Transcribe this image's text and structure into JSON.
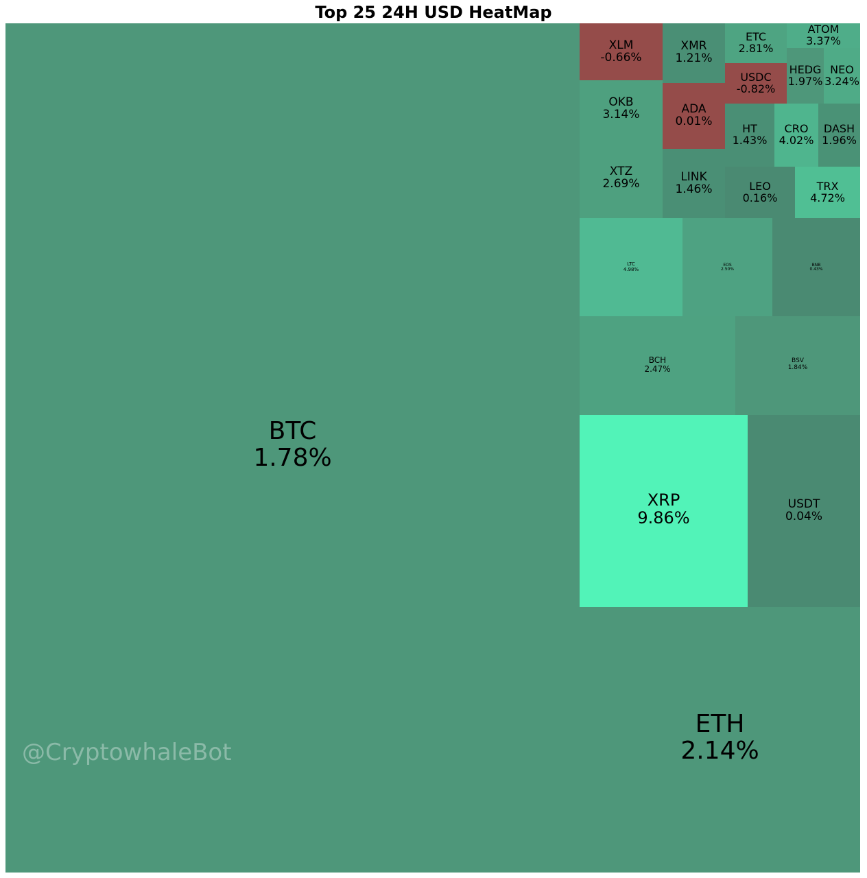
{
  "chart_data": {
    "type": "heatmap",
    "title": "Top 25 24H USD HeatMap",
    "watermark": "@CryptowhaleBot",
    "cells": [
      {
        "symbol": "BTC",
        "change": "1.78%",
        "value": 1.78,
        "color": "#4e977a"
      },
      {
        "symbol": "ETH",
        "change": "2.14%",
        "value": 2.14,
        "color": "#4e977a"
      },
      {
        "symbol": "XRP",
        "change": "9.86%",
        "value": 9.86,
        "color": "#52f3b8"
      },
      {
        "symbol": "USDT",
        "change": "0.04%",
        "value": 0.04,
        "color": "#4a8a72"
      },
      {
        "symbol": "BCH",
        "change": "2.47%",
        "value": 2.47,
        "color": "#4ea281"
      },
      {
        "symbol": "BSV",
        "change": "1.84%",
        "value": 1.84,
        "color": "#4e977a"
      },
      {
        "symbol": "LTC",
        "change": "4.98%",
        "value": 4.98,
        "color": "#50ba93"
      },
      {
        "symbol": "EOS",
        "change": "2.50%",
        "value": 2.5,
        "color": "#4ea282"
      },
      {
        "symbol": "BNB",
        "change": "0.43%",
        "value": 0.43,
        "color": "#4a8a72"
      },
      {
        "symbol": "XLM",
        "change": "-0.66%",
        "value": -0.66,
        "color": "#954c4a"
      },
      {
        "symbol": "XMR",
        "change": "1.21%",
        "value": 1.21,
        "color": "#4a8f75"
      },
      {
        "symbol": "ETC",
        "change": "2.81%",
        "value": 2.81,
        "color": "#4ea482"
      },
      {
        "symbol": "ATOM",
        "change": "3.37%",
        "value": 3.37,
        "color": "#4fad89"
      },
      {
        "symbol": "USDC",
        "change": "-0.82%",
        "value": -0.82,
        "color": "#954c4a"
      },
      {
        "symbol": "HEDG",
        "change": "1.97%",
        "value": 1.97,
        "color": "#4e977a"
      },
      {
        "symbol": "NEO",
        "change": "3.24%",
        "value": 3.24,
        "color": "#4fab87"
      },
      {
        "symbol": "OKB",
        "change": "3.14%",
        "value": 3.14,
        "color": "#4ea07f"
      },
      {
        "symbol": "XTZ",
        "change": "2.69%",
        "value": 2.69,
        "color": "#4ea07f"
      },
      {
        "symbol": "ADA",
        "change": "0.01%",
        "value": 0.01,
        "color": "#954c4a"
      },
      {
        "symbol": "LINK",
        "change": "1.46%",
        "value": 1.46,
        "color": "#4a8f75"
      },
      {
        "symbol": "HT",
        "change": "1.43%",
        "value": 1.43,
        "color": "#4a8f75"
      },
      {
        "symbol": "CRO",
        "change": "4.02%",
        "value": 4.02,
        "color": "#4fb58e"
      },
      {
        "symbol": "DASH",
        "change": "1.96%",
        "value": 1.96,
        "color": "#4a9276"
      },
      {
        "symbol": "LEO",
        "change": "0.16%",
        "value": 0.16,
        "color": "#4a8a72"
      },
      {
        "symbol": "TRX",
        "change": "4.72%",
        "value": 4.72,
        "color": "#50bf94"
      }
    ]
  }
}
